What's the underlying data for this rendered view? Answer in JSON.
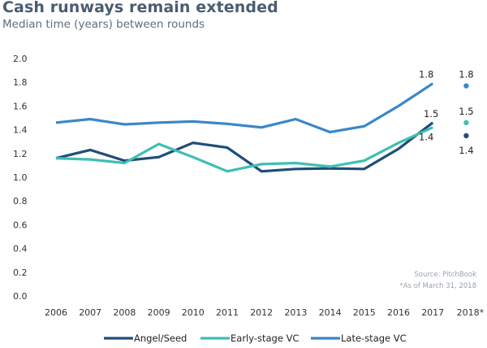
{
  "chart_data": {
    "type": "line",
    "title": "Cash runways remain extended",
    "subtitle": "Median time (years) between rounds",
    "xlabel": "",
    "ylabel": "",
    "ylim": [
      0,
      2.0
    ],
    "yticks": [
      "0.0",
      "0.2",
      "0.4",
      "0.6",
      "0.8",
      "1.0",
      "1.2",
      "1.4",
      "1.6",
      "1.8",
      "2.0"
    ],
    "categories": [
      "2006",
      "2007",
      "2008",
      "2009",
      "2010",
      "2011",
      "2012",
      "2013",
      "2014",
      "2015",
      "2016",
      "2017",
      "2018*"
    ],
    "grid": false,
    "legend_position": "bottom",
    "series": [
      {
        "name": "Angel/Seed",
        "color": "#1f4e79",
        "values": [
          1.16,
          1.23,
          1.14,
          1.17,
          1.29,
          1.25,
          1.05,
          1.07,
          1.075,
          1.07,
          1.24,
          1.46
        ],
        "point_2018": 1.35,
        "label_2017": "1.5",
        "label_2018": "1.4"
      },
      {
        "name": "Early-stage VC",
        "color": "#3fbfb3",
        "values": [
          1.16,
          1.15,
          1.12,
          1.28,
          1.17,
          1.05,
          1.11,
          1.12,
          1.09,
          1.14,
          1.29,
          1.42
        ],
        "point_2018": 1.46,
        "label_2017": "1.4",
        "label_2018": "1.5"
      },
      {
        "name": "Late-stage VC",
        "color": "#3a87c8",
        "values": [
          1.46,
          1.49,
          1.445,
          1.46,
          1.47,
          1.45,
          1.42,
          1.49,
          1.38,
          1.43,
          1.6,
          1.79
        ],
        "point_2018": 1.77,
        "label_2017": "1.8",
        "label_2018": "1.8"
      }
    ],
    "annotations": [
      "Source: PitchBook",
      "*As of March 31, 2018"
    ]
  }
}
